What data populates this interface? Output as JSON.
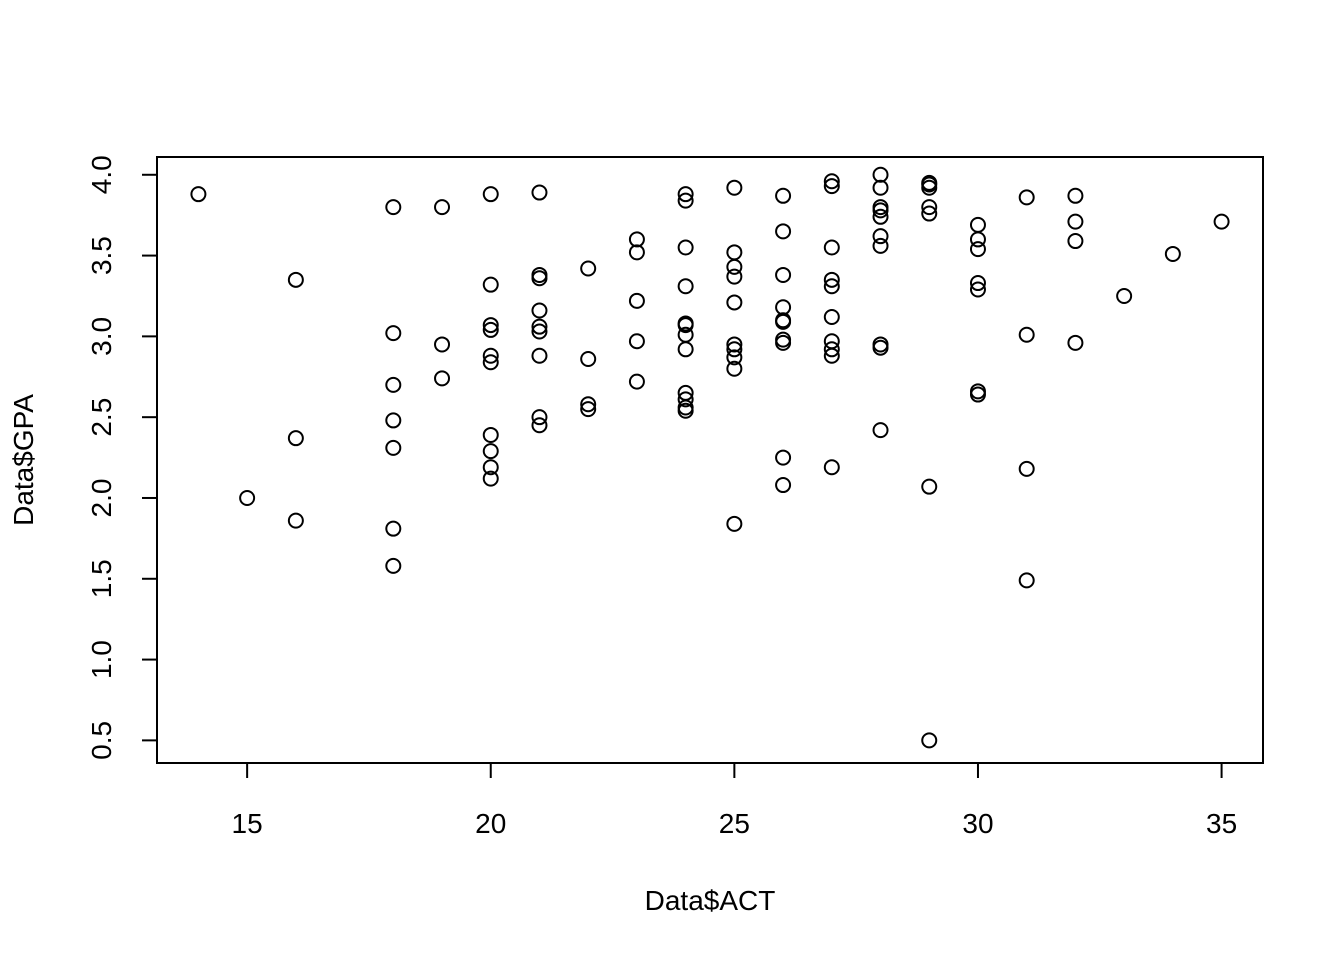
{
  "chart_data": {
    "type": "scatter",
    "title": "",
    "xlabel": "Data$ACT",
    "ylabel": "Data$GPA",
    "xlim": [
      13.15,
      35.85
    ],
    "ylim": [
      0.36,
      4.11
    ],
    "x_ticks": [
      15,
      20,
      25,
      30,
      35
    ],
    "y_ticks": [
      0.5,
      1.0,
      1.5,
      2.0,
      2.5,
      3.0,
      3.5,
      4.0
    ],
    "x_tick_labels": [
      "15",
      "20",
      "25",
      "30",
      "35"
    ],
    "y_tick_labels": [
      "0.5",
      "1.0",
      "1.5",
      "2.0",
      "2.5",
      "3.0",
      "3.5",
      "4.0"
    ],
    "grid": false,
    "legend": "none",
    "marker": "open-circle",
    "color": "#000000",
    "points": [
      [
        14,
        3.88
      ],
      [
        15,
        2.0
      ],
      [
        16,
        3.35
      ],
      [
        16,
        2.37
      ],
      [
        16,
        1.86
      ],
      [
        18,
        3.8
      ],
      [
        18,
        3.02
      ],
      [
        18,
        2.7
      ],
      [
        18,
        2.48
      ],
      [
        18,
        2.31
      ],
      [
        18,
        1.81
      ],
      [
        18,
        1.58
      ],
      [
        19,
        3.8
      ],
      [
        19,
        2.95
      ],
      [
        19,
        2.74
      ],
      [
        20,
        3.88
      ],
      [
        20,
        3.32
      ],
      [
        20,
        3.07
      ],
      [
        20,
        3.04
      ],
      [
        20,
        2.88
      ],
      [
        20,
        2.84
      ],
      [
        20,
        2.39
      ],
      [
        20,
        2.29
      ],
      [
        20,
        2.19
      ],
      [
        20,
        2.12
      ],
      [
        21,
        3.89
      ],
      [
        21,
        3.38
      ],
      [
        21,
        3.36
      ],
      [
        21,
        3.16
      ],
      [
        21,
        3.06
      ],
      [
        21,
        3.03
      ],
      [
        21,
        2.88
      ],
      [
        21,
        2.5
      ],
      [
        21,
        2.45
      ],
      [
        22,
        3.42
      ],
      [
        22,
        2.86
      ],
      [
        22,
        2.58
      ],
      [
        22,
        2.55
      ],
      [
        23,
        3.6
      ],
      [
        23,
        3.52
      ],
      [
        23,
        3.22
      ],
      [
        23,
        2.97
      ],
      [
        23,
        2.72
      ],
      [
        24,
        3.88
      ],
      [
        24,
        3.84
      ],
      [
        24,
        3.55
      ],
      [
        24,
        3.31
      ],
      [
        24,
        3.08
      ],
      [
        24,
        3.07
      ],
      [
        24,
        3.01
      ],
      [
        24,
        2.92
      ],
      [
        24,
        2.65
      ],
      [
        24,
        2.61
      ],
      [
        24,
        2.56
      ],
      [
        24,
        2.54
      ],
      [
        25,
        3.92
      ],
      [
        25,
        3.52
      ],
      [
        25,
        3.43
      ],
      [
        25,
        3.37
      ],
      [
        25,
        3.21
      ],
      [
        25,
        2.95
      ],
      [
        25,
        2.92
      ],
      [
        25,
        2.87
      ],
      [
        25,
        2.8
      ],
      [
        25,
        1.84
      ],
      [
        26,
        3.87
      ],
      [
        26,
        3.65
      ],
      [
        26,
        3.38
      ],
      [
        26,
        3.18
      ],
      [
        26,
        3.1
      ],
      [
        26,
        3.09
      ],
      [
        26,
        2.98
      ],
      [
        26,
        2.96
      ],
      [
        26,
        2.25
      ],
      [
        26,
        2.08
      ],
      [
        27,
        3.96
      ],
      [
        27,
        3.93
      ],
      [
        27,
        3.55
      ],
      [
        27,
        3.35
      ],
      [
        27,
        3.31
      ],
      [
        27,
        3.12
      ],
      [
        27,
        2.97
      ],
      [
        27,
        2.92
      ],
      [
        27,
        2.88
      ],
      [
        27,
        2.19
      ],
      [
        28,
        4.0
      ],
      [
        28,
        3.92
      ],
      [
        28,
        3.8
      ],
      [
        28,
        3.78
      ],
      [
        28,
        3.74
      ],
      [
        28,
        3.62
      ],
      [
        28,
        3.56
      ],
      [
        28,
        2.95
      ],
      [
        28,
        2.93
      ],
      [
        28,
        2.42
      ],
      [
        29,
        3.95
      ],
      [
        29,
        3.94
      ],
      [
        29,
        3.92
      ],
      [
        29,
        3.8
      ],
      [
        29,
        3.76
      ],
      [
        29,
        2.07
      ],
      [
        29,
        0.5
      ],
      [
        30,
        3.69
      ],
      [
        30,
        3.6
      ],
      [
        30,
        3.54
      ],
      [
        30,
        3.33
      ],
      [
        30,
        3.29
      ],
      [
        30,
        2.66
      ],
      [
        30,
        2.64
      ],
      [
        31,
        3.86
      ],
      [
        31,
        3.01
      ],
      [
        31,
        2.18
      ],
      [
        31,
        1.49
      ],
      [
        32,
        3.87
      ],
      [
        32,
        3.71
      ],
      [
        32,
        3.59
      ],
      [
        32,
        2.96
      ],
      [
        33,
        3.25
      ],
      [
        34,
        3.51
      ],
      [
        35,
        3.71
      ]
    ]
  }
}
